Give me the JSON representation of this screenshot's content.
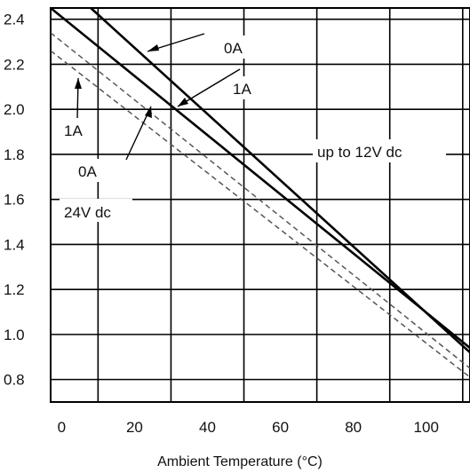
{
  "chart_data": {
    "type": "line",
    "title": "",
    "xlabel": "Ambient Temperature (°C)",
    "ylabel": "",
    "xlim": [
      -3,
      112
    ],
    "ylim": [
      0.7,
      2.45
    ],
    "grid": true,
    "x_ticks": [
      {
        "value": 0,
        "label": "0"
      },
      {
        "value": 20,
        "label": "20"
      },
      {
        "value": 40,
        "label": "40"
      },
      {
        "value": 60,
        "label": "60"
      },
      {
        "value": 80,
        "label": "80"
      },
      {
        "value": 100,
        "label": "100"
      }
    ],
    "y_ticks": [
      {
        "value": 2.4,
        "label": "2.4"
      },
      {
        "value": 2.2,
        "label": "2.2"
      },
      {
        "value": 2.0,
        "label": "2.0"
      },
      {
        "value": 1.8,
        "label": "1.8"
      },
      {
        "value": 1.6,
        "label": "1.6"
      },
      {
        "value": 1.4,
        "label": "1.4"
      },
      {
        "value": 1.2,
        "label": "1.2"
      },
      {
        "value": 1.0,
        "label": "1.0"
      },
      {
        "value": 0.8,
        "label": "0.8"
      }
    ],
    "series": [
      {
        "group": "up to 12V dc",
        "label": "0A",
        "style": "solid",
        "color": "#000000",
        "x": [
          8,
          112
        ],
        "y": [
          2.45,
          0.92
        ]
      },
      {
        "group": "up to 12V dc",
        "label": "1A",
        "style": "solid",
        "color": "#000000",
        "x": [
          -3,
          112
        ],
        "y": [
          2.45,
          0.94
        ]
      },
      {
        "group": "24V dc",
        "label": "0A",
        "style": "dashed",
        "color": "#555555",
        "x": [
          -3,
          112
        ],
        "y": [
          2.34,
          0.85
        ]
      },
      {
        "group": "24V dc",
        "label": "1A",
        "style": "dashed",
        "color": "#555555",
        "x": [
          -3,
          112
        ],
        "y": [
          2.26,
          0.81
        ]
      }
    ],
    "annotations": [
      {
        "text": "0A"
      },
      {
        "text": "1A"
      },
      {
        "text": "up to 12V dc"
      },
      {
        "text": "1A"
      },
      {
        "text": "0A"
      },
      {
        "text": "24V dc"
      }
    ]
  }
}
